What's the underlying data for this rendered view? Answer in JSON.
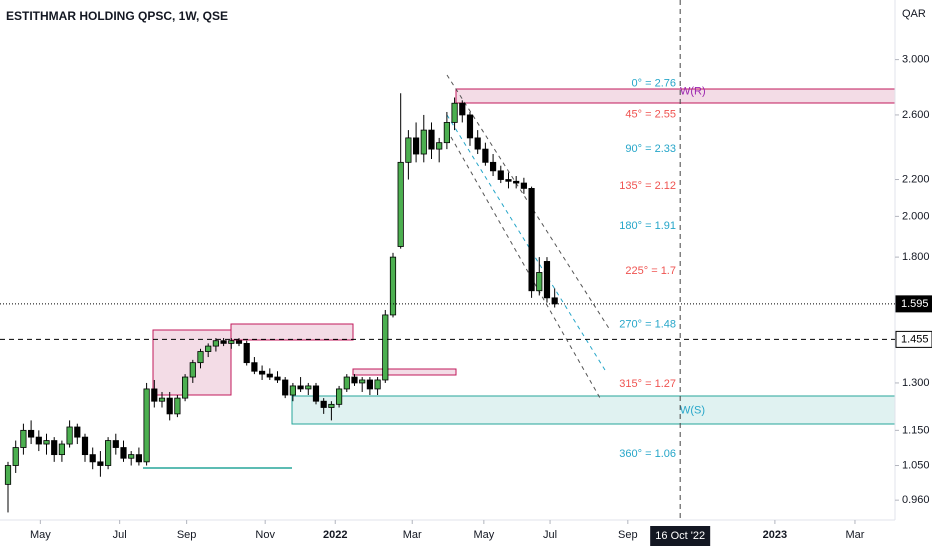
{
  "chart_data": {
    "type": "candlestick",
    "title": "ESTITHMAR HOLDING QPSC, 1W, QSE",
    "currency": "QAR",
    "log": true,
    "up_color": "#4caf50",
    "down_color": "#000000",
    "open": [
      1.0,
      1.05,
      1.1,
      1.15,
      1.13,
      1.11,
      1.12,
      1.08,
      1.11,
      1.16,
      1.13,
      1.08,
      1.06,
      1.05,
      1.12,
      1.1,
      1.07,
      1.08,
      1.06,
      1.28,
      1.24,
      1.25,
      1.2,
      1.25,
      1.32,
      1.37,
      1.41,
      1.43,
      1.45,
      1.44,
      1.45,
      1.44,
      1.37,
      1.34,
      1.33,
      1.32,
      1.31,
      1.26,
      1.29,
      1.28,
      1.29,
      1.24,
      1.22,
      1.23,
      1.28,
      1.32,
      1.3,
      1.31,
      1.28,
      1.31,
      1.55,
      1.85,
      2.3,
      2.45,
      2.35,
      2.5,
      2.38,
      2.42,
      2.55,
      2.68,
      2.6,
      2.45,
      2.38,
      2.3,
      2.25,
      2.2,
      2.19,
      2.18,
      2.15,
      1.65,
      1.78,
      1.62
    ],
    "high": [
      1.06,
      1.12,
      1.17,
      1.18,
      1.15,
      1.14,
      1.13,
      1.12,
      1.18,
      1.17,
      1.14,
      1.1,
      1.09,
      1.13,
      1.14,
      1.12,
      1.09,
      1.1,
      1.3,
      1.31,
      1.27,
      1.27,
      1.26,
      1.33,
      1.38,
      1.42,
      1.44,
      1.46,
      1.46,
      1.46,
      1.46,
      1.45,
      1.39,
      1.36,
      1.35,
      1.34,
      1.32,
      1.3,
      1.32,
      1.3,
      1.3,
      1.25,
      1.24,
      1.29,
      1.33,
      1.33,
      1.32,
      1.32,
      1.32,
      1.57,
      1.82,
      2.75,
      2.5,
      2.55,
      2.6,
      2.55,
      2.45,
      2.62,
      2.72,
      2.7,
      2.62,
      2.5,
      2.42,
      2.35,
      2.28,
      2.24,
      2.22,
      2.21,
      2.16,
      1.8,
      1.8,
      1.66
    ],
    "low": [
      0.93,
      1.03,
      1.08,
      1.11,
      1.09,
      1.08,
      1.06,
      1.06,
      1.1,
      1.11,
      1.06,
      1.04,
      1.02,
      1.04,
      1.08,
      1.06,
      1.05,
      1.05,
      1.05,
      1.22,
      1.22,
      1.18,
      1.19,
      1.24,
      1.3,
      1.35,
      1.39,
      1.41,
      1.43,
      1.42,
      1.43,
      1.36,
      1.33,
      1.31,
      1.31,
      1.3,
      1.25,
      1.24,
      1.27,
      1.26,
      1.23,
      1.2,
      1.18,
      1.22,
      1.27,
      1.29,
      1.27,
      1.26,
      1.26,
      1.3,
      1.54,
      1.84,
      2.2,
      2.3,
      2.3,
      2.32,
      2.3,
      2.38,
      2.5,
      2.55,
      2.4,
      2.35,
      2.28,
      2.22,
      2.18,
      2.15,
      2.15,
      2.12,
      1.62,
      1.63,
      1.6,
      1.58
    ],
    "close": [
      1.05,
      1.1,
      1.15,
      1.13,
      1.11,
      1.12,
      1.08,
      1.11,
      1.16,
      1.13,
      1.08,
      1.06,
      1.05,
      1.12,
      1.1,
      1.07,
      1.08,
      1.06,
      1.28,
      1.24,
      1.25,
      1.2,
      1.25,
      1.32,
      1.37,
      1.41,
      1.43,
      1.45,
      1.44,
      1.45,
      1.44,
      1.37,
      1.34,
      1.33,
      1.32,
      1.31,
      1.26,
      1.29,
      1.28,
      1.29,
      1.24,
      1.22,
      1.23,
      1.28,
      1.32,
      1.3,
      1.31,
      1.28,
      1.31,
      1.55,
      1.8,
      2.3,
      2.45,
      2.35,
      2.5,
      2.38,
      2.42,
      2.55,
      2.68,
      2.6,
      2.45,
      2.38,
      2.3,
      2.25,
      2.2,
      2.19,
      2.18,
      2.15,
      1.65,
      1.73,
      1.62,
      1.595
    ],
    "ylim": [
      0.912,
      3.5
    ],
    "yticks": [
      {
        "value": 3.0,
        "label": "3.000"
      },
      {
        "value": 2.6,
        "label": "2.600"
      },
      {
        "value": 2.2,
        "label": "2.200"
      },
      {
        "value": 2.0,
        "label": "2.000"
      },
      {
        "value": 1.8,
        "label": "1.800"
      },
      {
        "value": 1.3,
        "label": "1.300"
      },
      {
        "value": 1.15,
        "label": "1.150"
      },
      {
        "value": 1.05,
        "label": "1.050"
      },
      {
        "value": 0.96,
        "label": "0.960"
      }
    ],
    "xlim": [
      -1.04,
      115.2
    ],
    "xticks": [
      {
        "value": 4.2,
        "label": "May"
      },
      {
        "value": 14.5,
        "label": "Jul"
      },
      {
        "value": 23.2,
        "label": "Sep"
      },
      {
        "value": 33.4,
        "label": "Nov"
      },
      {
        "value": 42.5,
        "label": "2022"
      },
      {
        "value": 52.5,
        "label": "Mar"
      },
      {
        "value": 61.8,
        "label": "May"
      },
      {
        "value": 70.4,
        "label": "Jul"
      },
      {
        "value": 80.5,
        "label": "Sep"
      },
      {
        "value": 99.6,
        "label": "2023"
      },
      {
        "value": 110,
        "label": "Mar"
      }
    ],
    "crosshair": {
      "value": 87.3,
      "label": "16 Oct '22"
    },
    "price_lines": [
      {
        "value": 1.595,
        "style": "dotted",
        "highlight": true
      },
      {
        "value": 1.455,
        "style": "dashed",
        "highlight": false
      }
    ],
    "annotations": [
      {
        "label": "0° = 2.76",
        "value": 2.76,
        "color": "#26a6c9"
      },
      {
        "label": "45° = 2.55",
        "value": 2.55,
        "color": "#ef5350"
      },
      {
        "label": "90° = 2.33",
        "value": 2.33,
        "color": "#26a6c9"
      },
      {
        "label": "135° = 2.12",
        "value": 2.12,
        "color": "#ef5350"
      },
      {
        "label": "180° = 1.91",
        "value": 1.91,
        "color": "#26a6c9"
      },
      {
        "label": "225° = 1.7",
        "value": 1.7,
        "color": "#ef5350"
      },
      {
        "label": "270° = 1.48",
        "value": 1.48,
        "color": "#26a6c9"
      },
      {
        "label": "315° = 1.27",
        "value": 1.27,
        "color": "#ef5350"
      },
      {
        "label": "360° = 1.06",
        "value": 1.06,
        "color": "#26a6c9"
      }
    ],
    "tags": [
      {
        "label": "W(R)",
        "value": 2.76,
        "color": "#9c27b0"
      },
      {
        "label": "W(S)",
        "value": 1.21,
        "color": "#26a6c9"
      }
    ]
  }
}
